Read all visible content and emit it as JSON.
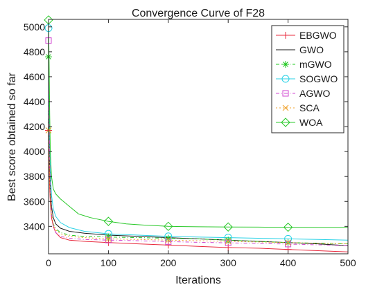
{
  "chart_data": {
    "type": "line",
    "title": "Convergence Curve of F28",
    "xlabel": "Iterations",
    "ylabel": "Best score obtained so far",
    "xlim": [
      0,
      500
    ],
    "ylim": [
      3180,
      5060
    ],
    "xticks": [
      0,
      100,
      200,
      300,
      400,
      500
    ],
    "yticks": [
      3400,
      3600,
      3800,
      4000,
      4200,
      4400,
      4600,
      4800,
      5000
    ],
    "grid": false,
    "legend_position": "top-right",
    "series": [
      {
        "name": "EBGWO",
        "color": "#e8283c",
        "dash": "",
        "marker": "plus",
        "points": [
          [
            0,
            4170
          ],
          [
            1,
            3900
          ],
          [
            2,
            3700
          ],
          [
            3,
            3580
          ],
          [
            5,
            3470
          ],
          [
            8,
            3400
          ],
          [
            12,
            3350
          ],
          [
            20,
            3310
          ],
          [
            35,
            3290
          ],
          [
            60,
            3280
          ],
          [
            100,
            3270
          ],
          [
            150,
            3260
          ],
          [
            200,
            3250
          ],
          [
            250,
            3240
          ],
          [
            300,
            3230
          ],
          [
            350,
            3225
          ],
          [
            400,
            3215
          ],
          [
            450,
            3205
          ],
          [
            500,
            3195
          ]
        ]
      },
      {
        "name": "GWO",
        "color": "#1a1a1a",
        "dash": "",
        "marker": "none",
        "points": [
          [
            0,
            4600
          ],
          [
            1,
            4200
          ],
          [
            2,
            3900
          ],
          [
            3,
            3700
          ],
          [
            5,
            3560
          ],
          [
            8,
            3470
          ],
          [
            12,
            3420
          ],
          [
            20,
            3385
          ],
          [
            35,
            3360
          ],
          [
            60,
            3345
          ],
          [
            100,
            3330
          ],
          [
            150,
            3320
          ],
          [
            200,
            3310
          ],
          [
            250,
            3300
          ],
          [
            300,
            3290
          ],
          [
            350,
            3280
          ],
          [
            400,
            3270
          ],
          [
            450,
            3260
          ],
          [
            500,
            3245
          ]
        ]
      },
      {
        "name": "mGWO",
        "color": "#1ec81e",
        "dash": "5,3,1,3",
        "marker": "star",
        "points": [
          [
            0,
            4760
          ],
          [
            1,
            4300
          ],
          [
            2,
            3950
          ],
          [
            3,
            3700
          ],
          [
            5,
            3500
          ],
          [
            8,
            3420
          ],
          [
            12,
            3380
          ],
          [
            20,
            3350
          ],
          [
            35,
            3330
          ],
          [
            60,
            3320
          ],
          [
            100,
            3315
          ],
          [
            150,
            3310
          ],
          [
            200,
            3305
          ],
          [
            250,
            3300
          ],
          [
            300,
            3290
          ],
          [
            350,
            3280
          ],
          [
            400,
            3270
          ],
          [
            450,
            3265
          ],
          [
            500,
            3260
          ]
        ]
      },
      {
        "name": "SOGWO",
        "color": "#28d2e6",
        "dash": "",
        "marker": "circle",
        "points": [
          [
            0,
            4990
          ],
          [
            1,
            4500
          ],
          [
            2,
            4100
          ],
          [
            3,
            3850
          ],
          [
            5,
            3650
          ],
          [
            8,
            3540
          ],
          [
            12,
            3480
          ],
          [
            20,
            3430
          ],
          [
            35,
            3390
          ],
          [
            60,
            3360
          ],
          [
            100,
            3340
          ],
          [
            150,
            3330
          ],
          [
            200,
            3320
          ],
          [
            250,
            3315
          ],
          [
            300,
            3310
          ],
          [
            350,
            3305
          ],
          [
            400,
            3300
          ],
          [
            450,
            3295
          ],
          [
            500,
            3290
          ]
        ]
      },
      {
        "name": "AGWO",
        "color": "#d046d0",
        "dash": "5,3,1,3",
        "marker": "square",
        "points": [
          [
            0,
            4890
          ],
          [
            1,
            4400
          ],
          [
            2,
            3950
          ],
          [
            3,
            3700
          ],
          [
            5,
            3500
          ],
          [
            8,
            3400
          ],
          [
            12,
            3350
          ],
          [
            20,
            3320
          ],
          [
            35,
            3305
          ],
          [
            60,
            3295
          ],
          [
            100,
            3290
          ],
          [
            150,
            3285
          ],
          [
            200,
            3278
          ],
          [
            250,
            3272
          ],
          [
            300,
            3268
          ],
          [
            350,
            3263
          ],
          [
            400,
            3258
          ],
          [
            450,
            3252
          ],
          [
            500,
            3245
          ]
        ]
      },
      {
        "name": "SCA",
        "color": "#f0a028",
        "dash": "2,3",
        "marker": "cross",
        "points": [
          [
            0,
            4170
          ],
          [
            1,
            3950
          ],
          [
            2,
            3750
          ],
          [
            3,
            3620
          ],
          [
            5,
            3500
          ],
          [
            8,
            3420
          ],
          [
            12,
            3370
          ],
          [
            20,
            3340
          ],
          [
            35,
            3320
          ],
          [
            60,
            3310
          ],
          [
            100,
            3300
          ],
          [
            150,
            3295
          ],
          [
            200,
            3290
          ],
          [
            250,
            3285
          ],
          [
            300,
            3280
          ],
          [
            350,
            3275
          ],
          [
            400,
            3270
          ],
          [
            450,
            3265
          ],
          [
            500,
            3260
          ]
        ]
      },
      {
        "name": "WOA",
        "color": "#28c828",
        "dash": "",
        "marker": "diamond",
        "points": [
          [
            0,
            5055
          ],
          [
            1,
            4700
          ],
          [
            2,
            4300
          ],
          [
            3,
            4000
          ],
          [
            5,
            3800
          ],
          [
            8,
            3700
          ],
          [
            12,
            3660
          ],
          [
            20,
            3620
          ],
          [
            35,
            3560
          ],
          [
            50,
            3500
          ],
          [
            70,
            3470
          ],
          [
            100,
            3440
          ],
          [
            130,
            3420
          ],
          [
            160,
            3410
          ],
          [
            200,
            3400
          ],
          [
            250,
            3397
          ],
          [
            300,
            3395
          ],
          [
            350,
            3394
          ],
          [
            400,
            3393
          ],
          [
            450,
            3392
          ],
          [
            500,
            3392
          ]
        ]
      }
    ]
  }
}
